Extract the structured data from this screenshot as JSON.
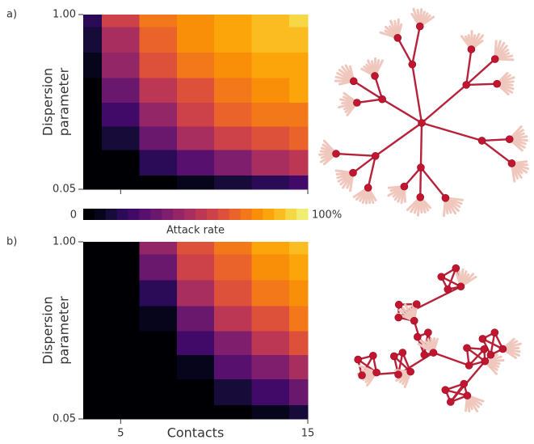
{
  "chart_data": [
    {
      "type": "heatmap",
      "panel_label": "a)",
      "ylabel": [
        "Dispersion",
        "parameter"
      ],
      "x": [
        3,
        5,
        7,
        9,
        11,
        13,
        15
      ],
      "y": [
        1.0,
        0.65,
        0.42,
        0.27,
        0.18,
        0.12,
        0.08,
        0.05
      ],
      "z": [
        [
          15,
          55,
          70,
          78,
          83,
          88,
          92
        ],
        [
          10,
          48,
          66,
          75,
          80,
          85,
          88
        ],
        [
          6,
          40,
          60,
          70,
          76,
          80,
          84
        ],
        [
          3,
          30,
          52,
          64,
          72,
          76,
          80
        ],
        [
          1,
          20,
          42,
          56,
          65,
          70,
          74
        ],
        [
          0,
          10,
          30,
          45,
          55,
          62,
          68
        ],
        [
          0,
          3,
          15,
          28,
          38,
          46,
          52
        ],
        [
          0,
          0,
          3,
          8,
          12,
          16,
          20
        ]
      ],
      "xlim": [
        3,
        15
      ],
      "xticks": [
        5,
        15
      ],
      "xticklabels": false,
      "ylim": [
        0.05,
        1
      ],
      "yticks": [
        {
          "value": 1,
          "label": "1.00"
        },
        0.05
      ],
      "ylog": true,
      "colorbar": {
        "label": "Attack rate",
        "lim": [
          0,
          100
        ],
        "ticks": [
          0,
          {
            "value": 100,
            "label": "100%"
          }
        ],
        "colors": [
          "#000004",
          "#07051b",
          "#160b39",
          "#2b0b57",
          "#420a68",
          "#57106e",
          "#6a176e",
          "#7f1e6c",
          "#932667",
          "#a82e5f",
          "#bc3754",
          "#cc4248",
          "#dd513a",
          "#ea632a",
          "#f37819",
          "#f98e09",
          "#fca50a",
          "#fbbc21",
          "#f6d746",
          "#f1ed71"
        ]
      }
    },
    {
      "type": "heatmap",
      "panel_label": "b)",
      "ylabel": [
        "Dispersion",
        "parameter"
      ],
      "xlabel": "Contacts",
      "x": [
        3,
        5,
        7,
        9,
        11,
        13,
        15
      ],
      "y": [
        1.0,
        0.65,
        0.42,
        0.27,
        0.18,
        0.12,
        0.08,
        0.05
      ],
      "z": [
        [
          0,
          2,
          40,
          60,
          72,
          80,
          86
        ],
        [
          0,
          0,
          30,
          55,
          68,
          76,
          82
        ],
        [
          0,
          0,
          18,
          45,
          60,
          70,
          76
        ],
        [
          0,
          0,
          8,
          32,
          50,
          62,
          70
        ],
        [
          0,
          0,
          2,
          20,
          38,
          52,
          60
        ],
        [
          0,
          0,
          0,
          8,
          25,
          38,
          48
        ],
        [
          0,
          0,
          0,
          2,
          10,
          20,
          30
        ],
        [
          0,
          0,
          0,
          0,
          2,
          5,
          10
        ]
      ],
      "xlim": [
        3,
        15
      ],
      "xticks": [
        5,
        15
      ],
      "xticklabels": true,
      "ylim": [
        0.05,
        1
      ],
      "yticks": [
        {
          "value": 1,
          "label": "1.00"
        },
        0.05
      ],
      "ylog": true
    }
  ]
}
